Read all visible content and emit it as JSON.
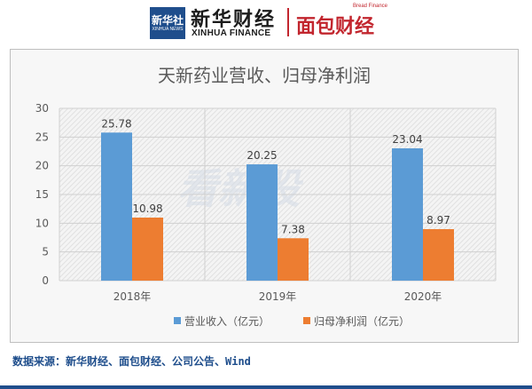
{
  "header": {
    "xinhua_badge_cn": "新华社",
    "xinhua_badge_en": "XINHUA NEWS",
    "xinhua_finance_cn": "新华财经",
    "xinhua_finance_en": "XINHUA FINANCE",
    "bread_finance_cn": "面包财经",
    "bread_finance_en": "Bread Finance"
  },
  "watermark": "看新股",
  "source": "数据来源：新华财经、面包财经、公司公告、Wind",
  "colors": {
    "revenue": "#5b9bd5",
    "net_profit": "#ed7d31",
    "brand_blue": "#1f4e8c",
    "brand_red": "#c2262e"
  },
  "chart_data": {
    "type": "bar",
    "title": "天新药业营收、归母净利润",
    "categories": [
      "2018年",
      "2019年",
      "2020年"
    ],
    "series": [
      {
        "name": "营业收入（亿元）",
        "values": [
          25.78,
          20.25,
          23.04
        ],
        "labels": [
          "25.78",
          "20.25",
          "23.04"
        ]
      },
      {
        "name": "归母净利润（亿元）",
        "values": [
          10.98,
          7.38,
          8.97
        ],
        "labels": [
          "10.98",
          "7.38",
          "8.97"
        ]
      }
    ],
    "ylim": [
      0,
      30
    ],
    "yticks": [
      "0",
      "5",
      "10",
      "15",
      "20",
      "25",
      "30"
    ],
    "grid": true,
    "legend_position": "bottom"
  }
}
